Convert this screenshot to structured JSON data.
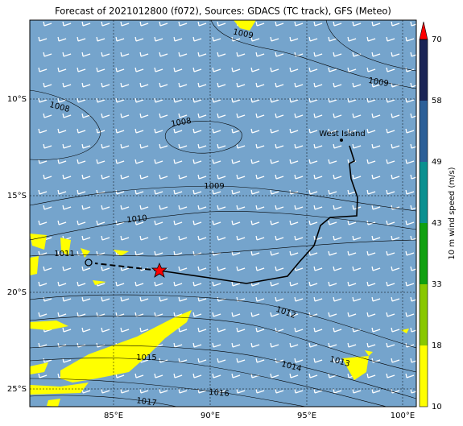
{
  "title": "Forecast of 2021012800 (f072), Sources: GDACS (TC track), GFS (Meteo)",
  "lon_ticks": [
    "85°E",
    "90°E",
    "95°E",
    "100°E"
  ],
  "lat_ticks": [
    "10°S",
    "15°S",
    "20°S",
    "25°S"
  ],
  "contour_labels": [
    "1009",
    "1009",
    "1008",
    "1008",
    "1009",
    "1010",
    "1011",
    "1012",
    "1013",
    "1014",
    "1015",
    "1016",
    "1017"
  ],
  "places": [
    "West Island"
  ],
  "colorbar": {
    "label": "10 m wind speed (m/s)",
    "ticks": [
      "10",
      "18",
      "33",
      "43",
      "49",
      "58",
      "70"
    ]
  }
}
